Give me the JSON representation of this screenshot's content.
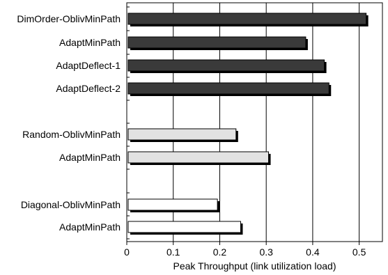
{
  "chart_data": {
    "type": "bar",
    "orientation": "horizontal",
    "title": "",
    "xlabel": "Peak Throughput (link utilization load)",
    "ylabel": "",
    "xlim": [
      0,
      0.55
    ],
    "xticks": [
      "0",
      "0.1",
      "0.2",
      "0.3",
      "0.4",
      "0.5"
    ],
    "grid": "vertical",
    "legend": "none",
    "groups": [
      {
        "fill_color": "#3a3a3a",
        "categories": [
          "DimOrder-OblivMinPath",
          "AdaptMinPath",
          "AdaptDeflect-1",
          "AdaptDeflect-2"
        ],
        "values": [
          0.515,
          0.385,
          0.425,
          0.435
        ]
      },
      {
        "fill_color": "#e2e2e2",
        "categories": [
          "Random-OblivMinPath",
          "AdaptMinPath"
        ],
        "values": [
          0.235,
          0.305
        ]
      },
      {
        "fill_color": "#ffffff",
        "categories": [
          "Diagonal-OblivMinPath",
          "AdaptMinPath"
        ],
        "values": [
          0.195,
          0.245
        ]
      }
    ]
  }
}
